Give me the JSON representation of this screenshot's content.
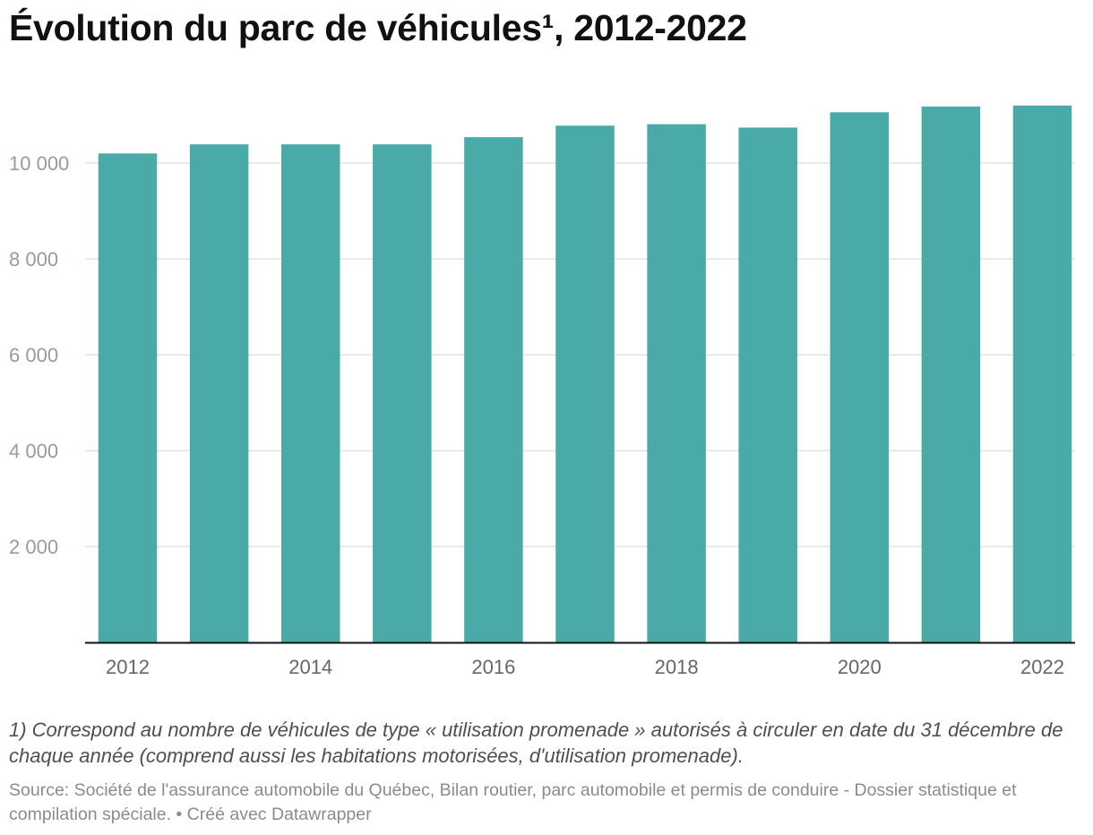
{
  "title": "Évolution du parc de véhicules¹, 2012-2022",
  "footnote": "1) Correspond au nombre de véhicules de type « utilisation promenade » autorisés à circuler en date du 31 décembre de chaque année (comprend aussi les habitations motorisées, d'utilisation promenade).",
  "source": "Source: Société de l'assurance automobile du Québec, Bilan routier, parc automobile et permis de conduire - Dossier statistique et compilation spéciale. • Créé avec Datawrapper",
  "colors": {
    "bar": "#49aaa8",
    "grid": "#e2e2e2",
    "axis_text": "#9a9a9a",
    "x_text": "#666666"
  },
  "chart_data": {
    "type": "bar",
    "title": "Évolution du parc de véhicules¹, 2012-2022",
    "xlabel": "",
    "ylabel": "",
    "categories": [
      "2012",
      "2013",
      "2014",
      "2015",
      "2016",
      "2017",
      "2018",
      "2019",
      "2020",
      "2021",
      "2022"
    ],
    "values": [
      10200,
      10390,
      10390,
      10390,
      10540,
      10780,
      10810,
      10740,
      11060,
      11180,
      11200
    ],
    "ylim": [
      0,
      11500
    ],
    "y_ticks": [
      2000,
      4000,
      6000,
      8000,
      10000
    ],
    "y_tick_labels": [
      "2 000",
      "4 000",
      "6 000",
      "8 000",
      "10 000"
    ],
    "x_tick_labels": [
      "2012",
      "2014",
      "2016",
      "2018",
      "2020",
      "2022"
    ],
    "grid": true,
    "legend": "none"
  }
}
